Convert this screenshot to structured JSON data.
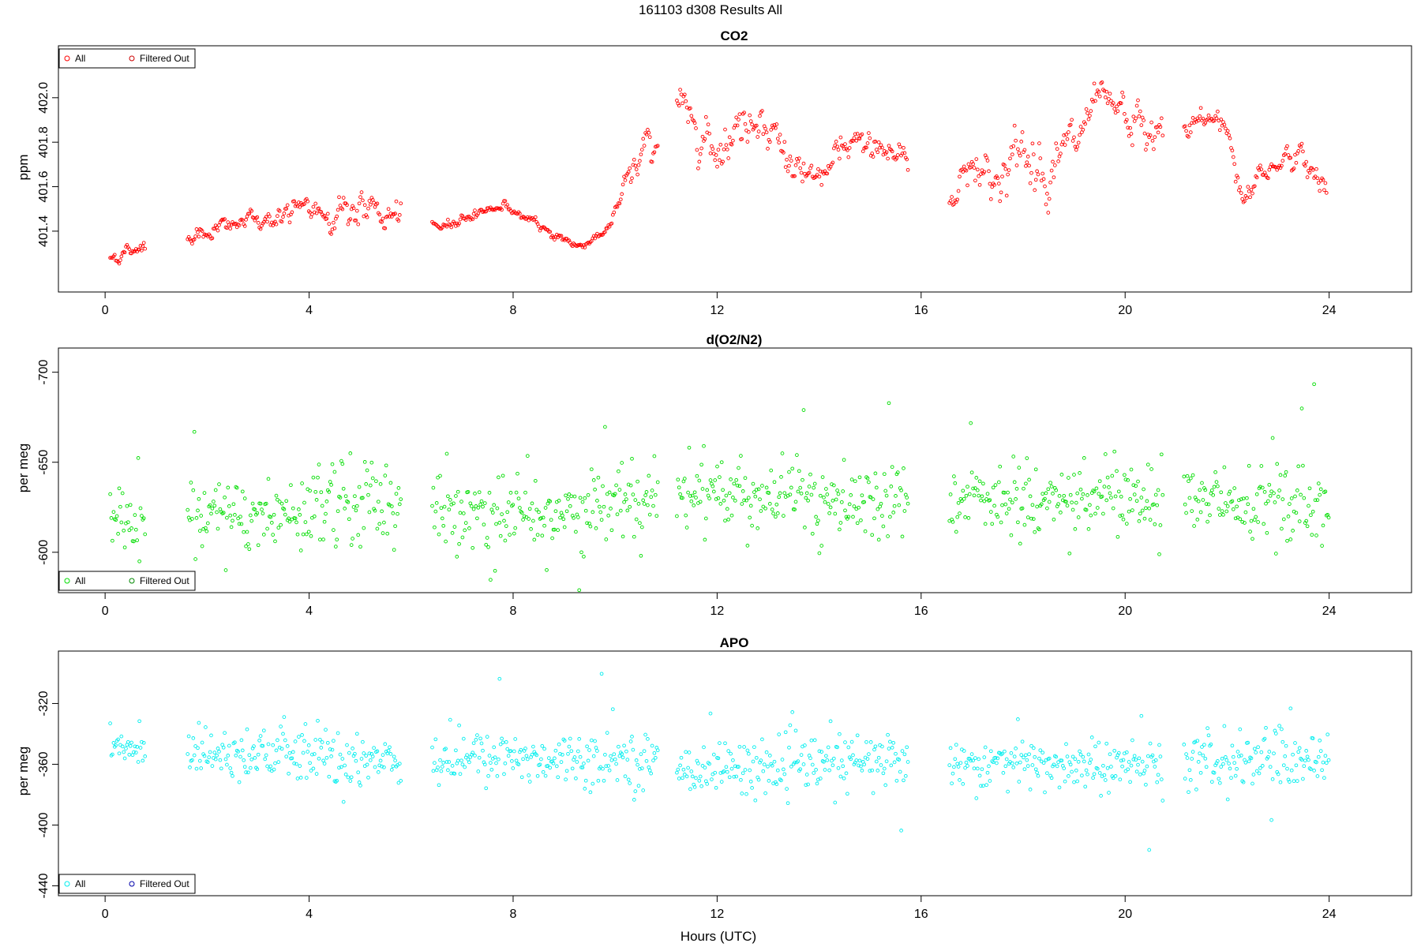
{
  "figure": {
    "title": "161103   d308   Results All",
    "xlabel": "Hours (UTC)"
  },
  "chart_data": [
    {
      "type": "scatter",
      "title": "CO2",
      "ylabel": "ppm",
      "xlim": [
        -0.9,
        25.6
      ],
      "ylim": [
        401.13,
        402.23
      ],
      "x_ticks": [
        0,
        4,
        8,
        12,
        16,
        20,
        24
      ],
      "y_ticks": [
        401.4,
        401.6,
        401.8,
        402.0
      ],
      "y_tick_labels": [
        "401.4",
        "401.6",
        "401.8",
        "402.0"
      ],
      "color": "#ff0000",
      "legend_position": "top-left",
      "legend": [
        {
          "label": "All",
          "color": "#ff0000"
        },
        {
          "label": "Filtered Out",
          "color": "#cc0000"
        }
      ],
      "gaps": [
        [
          0.8,
          1.6
        ],
        [
          5.8,
          6.4
        ],
        [
          10.85,
          11.2
        ],
        [
          15.75,
          16.55
        ],
        [
          20.75,
          21.15
        ]
      ],
      "series": [
        {
          "name": "All",
          "x": [
            0,
            0.8,
            1.6,
            3,
            4,
            5,
            5.8,
            6.4,
            7,
            7.8,
            8.5,
            9.3,
            9.9,
            10.4,
            10.85,
            11.2,
            11.5,
            12,
            12.5,
            12.8,
            13.3,
            13.8,
            14.5,
            15,
            15.7,
            16.55,
            17,
            17.5,
            18,
            18.5,
            19,
            19.5,
            20,
            20.7,
            21.15,
            21.5,
            22,
            22.3,
            22.7,
            23.2,
            23.6,
            23.95
          ],
          "y": [
            401.27,
            401.34,
            401.38,
            401.45,
            401.49,
            401.5,
            401.45,
            401.4,
            401.46,
            401.52,
            401.42,
            401.33,
            401.42,
            401.7,
            401.84,
            402.0,
            401.9,
            401.8,
            401.88,
            401.95,
            401.76,
            401.6,
            401.75,
            401.8,
            401.72,
            401.54,
            401.72,
            401.64,
            401.75,
            401.7,
            401.78,
            401.96,
            401.9,
            401.8,
            401.85,
            401.9,
            401.88,
            401.55,
            401.66,
            401.75,
            401.68,
            401.62
          ],
          "noise": [
            0.02,
            0.02,
            0.02,
            0.03,
            0.04,
            0.05,
            0.04,
            0.015,
            0.015,
            0.015,
            0.012,
            0.012,
            0.015,
            0.06,
            0.05,
            0.06,
            0.06,
            0.07,
            0.07,
            0.06,
            0.06,
            0.04,
            0.05,
            0.05,
            0.05,
            0.03,
            0.07,
            0.08,
            0.08,
            0.08,
            0.07,
            0.05,
            0.06,
            0.07,
            0.03,
            0.03,
            0.05,
            0.04,
            0.04,
            0.03,
            0.05,
            0.04
          ]
        }
      ]
    },
    {
      "type": "scatter",
      "title": "d(O2/N2)",
      "ylabel": "per meg",
      "xlim": [
        -0.9,
        25.6
      ],
      "ylim": [
        -713,
        -578
      ],
      "y_reversed": true,
      "x_ticks": [
        0,
        4,
        8,
        12,
        16,
        20,
        24
      ],
      "y_ticks": [
        -600,
        -650,
        -700
      ],
      "y_tick_labels": [
        "-600",
        "-650",
        "-700"
      ],
      "color": "#00dd00",
      "legend_position": "bottom-left",
      "legend": [
        {
          "label": "All",
          "color": "#00dd00"
        },
        {
          "label": "Filtered Out",
          "color": "#008800"
        }
      ],
      "gaps": [
        [
          0.8,
          1.6
        ],
        [
          5.8,
          6.4
        ],
        [
          10.85,
          11.2
        ],
        [
          15.75,
          16.55
        ],
        [
          20.75,
          21.15
        ]
      ],
      "series": [
        {
          "name": "All",
          "x": [
            0,
            2,
            4,
            6,
            8,
            10,
            11.2,
            13,
            15,
            16.55,
            18,
            20,
            21.15,
            24
          ],
          "y": [
            -620,
            -618,
            -625,
            -624,
            -620,
            -624,
            -635,
            -632,
            -628,
            -628,
            -632,
            -635,
            -630,
            -625
          ],
          "noise": [
            8,
            9,
            12,
            12,
            9,
            10,
            9,
            10,
            11,
            9,
            10,
            10,
            11,
            11
          ]
        }
      ]
    },
    {
      "type": "scatter",
      "title": "APO",
      "ylabel": "per meg",
      "xlim": [
        -0.9,
        25.6
      ],
      "ylim": [
        -446,
        -286
      ],
      "x_ticks": [
        0,
        4,
        8,
        12,
        16,
        20,
        24
      ],
      "y_ticks": [
        -320,
        -360,
        -400,
        -440
      ],
      "y_tick_labels": [
        "-320",
        "-360",
        "-400",
        "-440"
      ],
      "color": "#00eeee",
      "legend_position": "bottom-left",
      "legend": [
        {
          "label": "All",
          "color": "#00eeee"
        },
        {
          "label": "Filtered Out",
          "color": "#0000aa"
        }
      ],
      "gaps": [
        [
          0.8,
          1.6
        ],
        [
          5.8,
          6.4
        ],
        [
          10.85,
          11.2
        ],
        [
          15.75,
          16.55
        ],
        [
          20.75,
          21.15
        ]
      ],
      "series": [
        {
          "name": "All",
          "x": [
            0,
            2,
            4,
            6,
            8,
            10,
            11.2,
            13,
            15,
            16.55,
            18,
            20,
            21.15,
            24
          ],
          "y": [
            -350,
            -350,
            -355,
            -356,
            -356,
            -355,
            -362,
            -362,
            -358,
            -358,
            -360,
            -362,
            -360,
            -355
          ],
          "noise": [
            7,
            8,
            10,
            10,
            8,
            9,
            8,
            9,
            10,
            8,
            9,
            9,
            10,
            10
          ]
        }
      ]
    }
  ]
}
